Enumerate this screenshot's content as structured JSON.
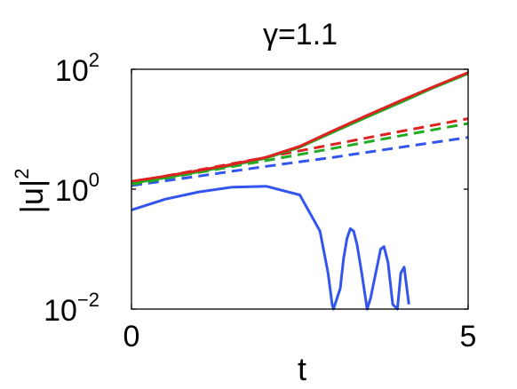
{
  "chart_data": {
    "type": "line",
    "title": "γ=1.1",
    "xlabel": "t",
    "ylabel": "|u|",
    "ylabel_superscript": "2",
    "xlim": [
      0,
      5
    ],
    "ylim": [
      0.01,
      100
    ],
    "yscale": "log",
    "grid": false,
    "x_ticks": [
      {
        "value": 0,
        "label": "0"
      },
      {
        "value": 5,
        "label": "5"
      }
    ],
    "y_ticks": [
      {
        "value": 0.01,
        "base": "10",
        "exp": "−2"
      },
      {
        "value": 1,
        "base": "10",
        "exp": "0"
      },
      {
        "value": 100,
        "base": "10",
        "exp": "2"
      }
    ],
    "series": [
      {
        "color": "#3355ee",
        "style": "solid",
        "x": [
          0,
          0.5,
          1.0,
          1.5,
          2.0,
          2.5,
          2.8,
          2.92,
          2.98,
          3.0,
          3.1,
          3.15,
          3.2,
          3.25,
          3.3,
          3.35,
          3.42,
          3.5,
          3.55,
          3.7,
          3.75,
          3.81,
          3.88,
          3.95,
          4.0,
          4.05,
          4.12
        ],
        "y": [
          0.45,
          0.68,
          0.9,
          1.08,
          1.12,
          0.8,
          0.2,
          0.04,
          0.012,
          0.01,
          0.022,
          0.07,
          0.15,
          0.22,
          0.2,
          0.12,
          0.04,
          0.01,
          0.015,
          0.1,
          0.11,
          0.06,
          0.012,
          0.01,
          0.04,
          0.05,
          0.012
        ]
      },
      {
        "color": "#3355ee",
        "style": "dashed",
        "x": [
          0,
          1,
          2,
          3,
          4,
          5
        ],
        "y": [
          1.15,
          1.65,
          2.4,
          3.4,
          5.0,
          7.3
        ]
      },
      {
        "color": "#22aa22",
        "style": "dashed",
        "x": [
          0,
          1,
          2,
          3,
          4,
          5
        ],
        "y": [
          1.2,
          1.9,
          3.0,
          4.8,
          7.8,
          12.5
        ]
      },
      {
        "color": "#dd2222",
        "style": "dashed",
        "x": [
          0,
          1,
          2,
          3,
          4,
          5
        ],
        "y": [
          1.3,
          2.1,
          3.4,
          5.6,
          9.2,
          15.0
        ]
      },
      {
        "color": "#22aa22",
        "style": "solid",
        "x": [
          0,
          0.5,
          1.0,
          1.5,
          2.0,
          2.5,
          3.0,
          3.5,
          4.0,
          4.5,
          5.0
        ],
        "y": [
          1.25,
          1.55,
          1.95,
          2.5,
          3.3,
          5.0,
          9.0,
          16.0,
          28.0,
          50.0,
          85.0
        ]
      },
      {
        "color": "#dd2222",
        "style": "solid",
        "x": [
          0,
          0.5,
          1.0,
          1.5,
          2.0,
          2.5,
          3.0,
          3.5,
          4.0,
          4.5,
          5.0
        ],
        "y": [
          1.35,
          1.65,
          2.05,
          2.6,
          3.4,
          5.2,
          9.5,
          17.0,
          30.0,
          52.0,
          88.0
        ]
      }
    ]
  }
}
